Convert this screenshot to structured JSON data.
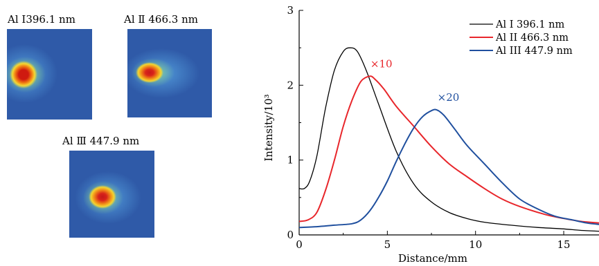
{
  "images": [
    {
      "title": "Al Ⅰ396.1 nm"
    },
    {
      "title": "Al Ⅱ 466.3 nm"
    },
    {
      "title": "Al Ⅲ 447.9 nm"
    }
  ],
  "colors": {
    "panel_bg": "#2f5aa8",
    "series_black": "#000000",
    "series_red": "#e8262b",
    "series_blue": "#1f4f9e"
  },
  "chart_data": {
    "type": "line",
    "xlabel": "Distance/mm",
    "ylabel": "Intensity/10³",
    "xlim": [
      0,
      17
    ],
    "ylim": [
      0,
      3
    ],
    "x_ticks": [
      "0",
      "5",
      "10",
      "15"
    ],
    "y_ticks": [
      "0",
      "1",
      "2",
      "3"
    ],
    "legend_position": "top-right",
    "series": [
      {
        "name": "Al I 396.1 nm",
        "color": "#000000",
        "x": [
          0,
          0.3,
          0.6,
          1.0,
          1.5,
          2.0,
          2.5,
          2.9,
          3.3,
          3.8,
          4.5,
          5.5,
          6.5,
          7.5,
          8.5,
          9.5,
          10.5,
          12,
          13.5,
          15,
          16,
          17
        ],
        "y": [
          0.62,
          0.62,
          0.72,
          1.05,
          1.7,
          2.2,
          2.45,
          2.5,
          2.45,
          2.2,
          1.75,
          1.12,
          0.68,
          0.44,
          0.3,
          0.22,
          0.17,
          0.13,
          0.1,
          0.08,
          0.06,
          0.05
        ]
      },
      {
        "name": "Al II 466.3 nm",
        "color": "#e8262b",
        "annotation": "×10",
        "x": [
          0,
          0.5,
          1.0,
          1.5,
          2.0,
          2.5,
          3.0,
          3.5,
          4.0,
          4.3,
          4.8,
          5.5,
          6.5,
          7.5,
          8.5,
          9.5,
          10.5,
          11.5,
          12.5,
          14,
          15,
          16,
          17
        ],
        "y": [
          0.18,
          0.2,
          0.3,
          0.6,
          1.0,
          1.45,
          1.8,
          2.05,
          2.12,
          2.08,
          1.95,
          1.72,
          1.45,
          1.18,
          0.95,
          0.78,
          0.62,
          0.48,
          0.38,
          0.27,
          0.22,
          0.18,
          0.16
        ]
      },
      {
        "name": "Al III 447.9 nm",
        "color": "#1f4f9e",
        "annotation": "×20",
        "x": [
          0,
          1,
          2,
          3,
          3.5,
          4,
          4.5,
          5,
          5.5,
          6,
          6.5,
          7,
          7.5,
          7.8,
          8.2,
          8.8,
          9.5,
          10.5,
          11.5,
          12.5,
          13.5,
          14.5,
          15.5,
          16.3,
          17
        ],
        "y": [
          0.1,
          0.11,
          0.13,
          0.15,
          0.2,
          0.32,
          0.5,
          0.72,
          0.98,
          1.22,
          1.43,
          1.58,
          1.66,
          1.67,
          1.6,
          1.42,
          1.2,
          0.95,
          0.7,
          0.48,
          0.35,
          0.25,
          0.2,
          0.16,
          0.14
        ]
      }
    ]
  }
}
